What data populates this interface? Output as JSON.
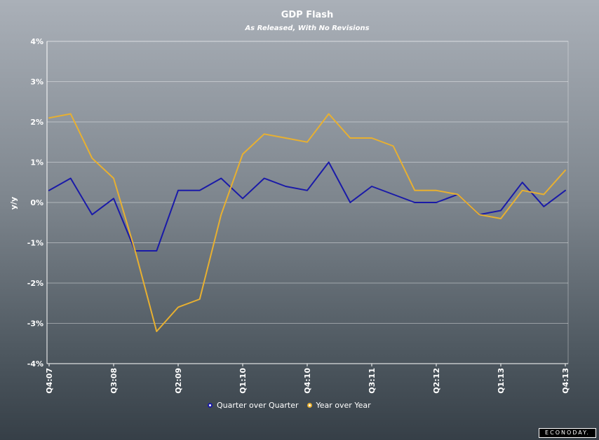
{
  "chart_data": {
    "type": "line",
    "title": "GDP Flash",
    "subtitle": "As Released, With No Revisions",
    "ylabel": "y/y",
    "xlabel": "",
    "ylim": [
      -4,
      4
    ],
    "y_ticks": [
      "4%",
      "3%",
      "2%",
      "1%",
      "0%",
      "-1%",
      "-2%",
      "-3%",
      "-4%"
    ],
    "y_tick_values": [
      4,
      3,
      2,
      1,
      0,
      -1,
      -2,
      -3,
      -4
    ],
    "x": [
      "Q4:07",
      "Q1:08",
      "Q2:08",
      "Q3:08",
      "Q4:08",
      "Q1:09",
      "Q2:09",
      "Q3:09",
      "Q4:09",
      "Q1:10",
      "Q2:10",
      "Q3:10",
      "Q4:10",
      "Q1:11",
      "Q2:11",
      "Q3:11",
      "Q4:11",
      "Q1:12",
      "Q2:12",
      "Q3:12",
      "Q4:12",
      "Q1:13",
      "Q2:13",
      "Q3:13",
      "Q4:13"
    ],
    "x_tick_labels": [
      "Q4:07",
      "Q3:08",
      "Q2:09",
      "Q1:10",
      "Q4:10",
      "Q3:11",
      "Q2:12",
      "Q1:13",
      "Q4:13"
    ],
    "x_tick_indices": [
      0,
      3,
      6,
      9,
      12,
      15,
      18,
      21,
      24
    ],
    "series": [
      {
        "name": "Quarter over Quarter",
        "color": "#1a1aa8",
        "values": [
          0.3,
          0.6,
          -0.3,
          0.1,
          -1.2,
          -1.2,
          0.3,
          0.3,
          0.6,
          0.1,
          0.6,
          0.4,
          0.3,
          1.0,
          0.0,
          0.4,
          0.2,
          0.0,
          0.0,
          0.2,
          -0.3,
          -0.2,
          0.5,
          -0.1,
          0.3
        ]
      },
      {
        "name": "Year over Year",
        "color": "#e8b030",
        "values": [
          2.1,
          2.2,
          1.1,
          0.6,
          -1.2,
          -3.2,
          -2.6,
          -2.4,
          -0.3,
          1.2,
          1.7,
          1.6,
          1.5,
          2.2,
          1.6,
          1.6,
          1.4,
          0.3,
          0.3,
          0.2,
          -0.3,
          -0.4,
          0.3,
          0.2,
          0.8
        ]
      }
    ],
    "grid": true,
    "legend": "bottom"
  },
  "logo_text": "ECONODAY."
}
